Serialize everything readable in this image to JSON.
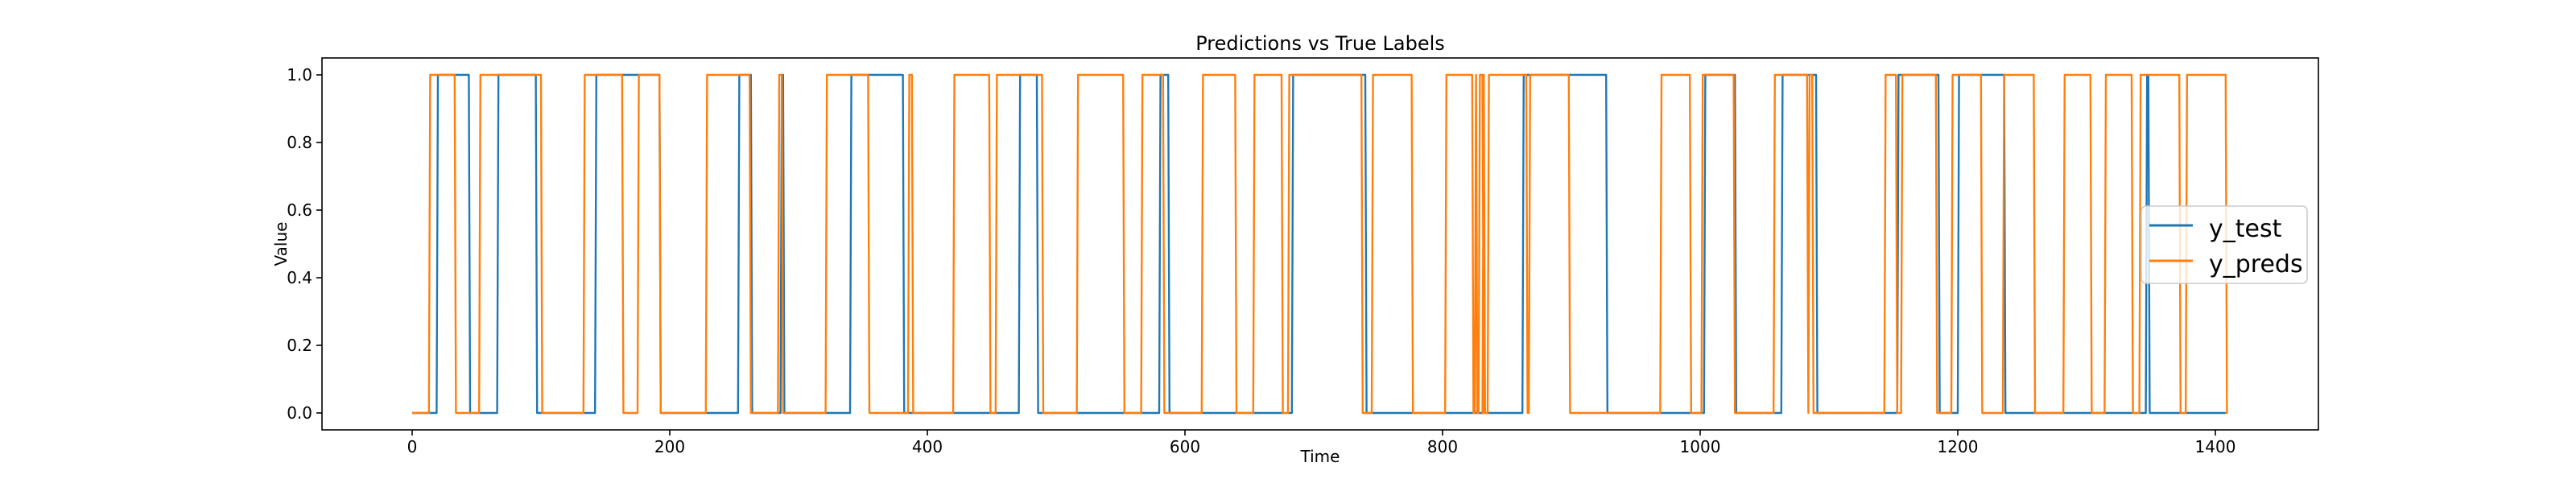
{
  "chart_data": {
    "type": "line",
    "title": "Predictions vs True Labels",
    "xlabel": "Time",
    "ylabel": "Value",
    "xlim": [
      -70,
      1480
    ],
    "ylim": [
      -0.05,
      1.05
    ],
    "xticks": [
      0,
      200,
      400,
      600,
      800,
      1000,
      1200,
      1400
    ],
    "yticks": [
      0.0,
      0.2,
      0.4,
      0.6,
      0.8,
      1.0
    ],
    "legend_position": "center-right",
    "grid": false,
    "series": [
      {
        "name": "y_test",
        "color": "#1f77b4",
        "segments_high": [
          [
            19,
            44
          ],
          [
            66,
            96
          ],
          [
            142,
            192
          ],
          [
            253,
            263
          ],
          [
            286,
            288
          ],
          [
            340,
            381
          ],
          [
            471,
            485
          ],
          [
            580,
            587
          ],
          [
            683,
            740
          ],
          [
            862,
            927
          ],
          [
            1003,
            1027
          ],
          [
            1063,
            1090
          ],
          [
            1153,
            1185
          ],
          [
            1200,
            1236
          ],
          [
            1346,
            1348
          ]
        ],
        "x_end": 1408
      },
      {
        "name": "y_preds",
        "color": "#ff7f0e",
        "segments_high": [
          [
            13,
            33
          ],
          [
            52,
            100
          ],
          [
            133,
            163
          ],
          [
            175,
            192
          ],
          [
            228,
            262
          ],
          [
            284,
            287
          ],
          [
            321,
            354
          ],
          [
            385,
            388
          ],
          [
            420,
            448
          ],
          [
            453,
            489
          ],
          [
            516,
            552
          ],
          [
            566,
            583
          ],
          [
            613,
            639
          ],
          [
            653,
            675
          ],
          [
            680,
            737
          ],
          [
            745,
            776
          ],
          [
            802,
            823
          ],
          [
            825,
            826
          ],
          [
            828,
            831
          ],
          [
            831,
            832
          ],
          [
            835,
            865
          ],
          [
            867,
            898
          ],
          [
            969,
            992
          ],
          [
            1001,
            1026
          ],
          [
            1057,
            1083
          ],
          [
            1084,
            1087
          ],
          [
            1143,
            1152
          ],
          [
            1156,
            1183
          ],
          [
            1195,
            1218
          ],
          [
            1235,
            1259
          ],
          [
            1282,
            1303
          ],
          [
            1314,
            1335
          ],
          [
            1341,
            1372
          ],
          [
            1377,
            1408
          ]
        ],
        "x_end": 1408
      }
    ]
  }
}
